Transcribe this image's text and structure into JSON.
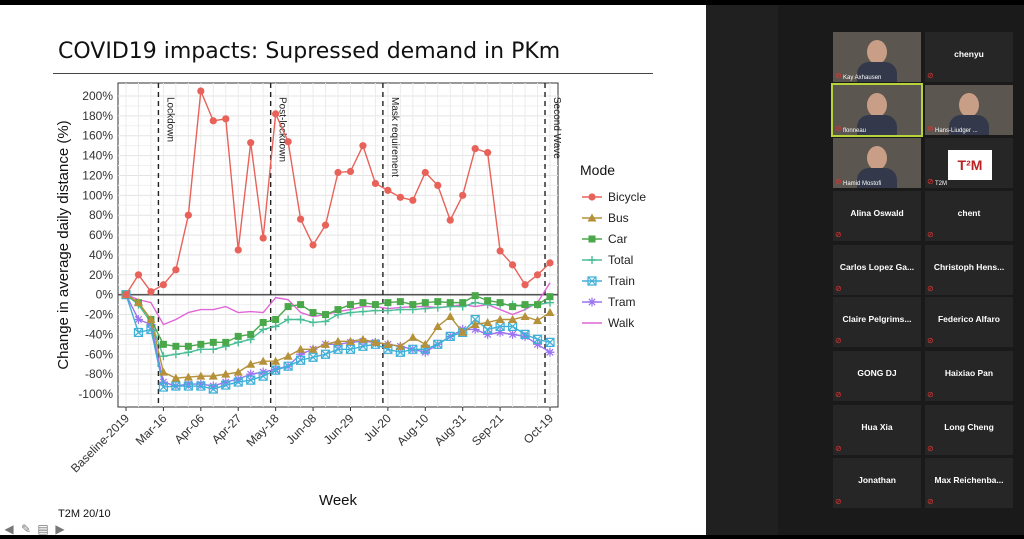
{
  "slide": {
    "title": "COVID19 impacts: Supressed demand in PKm",
    "number": "T2M 20/10"
  },
  "chart_data": {
    "type": "line",
    "xlabel": "Week",
    "ylabel": "Change in average daily distance (%)",
    "ylim": [
      -100,
      200
    ],
    "yticks": [
      "200%",
      "180%",
      "160%",
      "140%",
      "120%",
      "100%",
      "80%",
      "60%",
      "40%",
      "20%",
      "0%",
      "-20%",
      "-40%",
      "-60%",
      "-80%",
      "-100%"
    ],
    "xtick_labels": [
      "Baseline-2019",
      "Mar-16",
      "Apr-06",
      "Apr-27",
      "May-18",
      "Jun-08",
      "Jun-29",
      "Jul-20",
      "Aug-10",
      "Aug-31",
      "Sep-21",
      "Oct-19"
    ],
    "xtick_index": [
      0,
      3,
      6,
      9,
      12,
      15,
      18,
      21,
      24,
      27,
      30,
      34
    ],
    "annotations": [
      {
        "label": "Lockdown",
        "index": 2.6
      },
      {
        "label": "Post-lockdown",
        "index": 11.6
      },
      {
        "label": "Mask requirement",
        "index": 20.6
      },
      {
        "label": "Second Wave",
        "index": 33.6
      }
    ],
    "legend_title": "Mode",
    "series": [
      {
        "name": "Bicycle",
        "color": "#e8625a",
        "marker": "circle",
        "values": [
          0,
          20,
          3,
          10,
          25,
          80,
          205,
          175,
          177,
          45,
          153,
          57,
          182,
          154,
          76,
          50,
          70,
          123,
          124,
          150,
          112,
          105,
          98,
          95,
          123,
          110,
          75,
          100,
          147,
          143,
          44,
          30,
          10,
          20,
          32
        ]
      },
      {
        "name": "Bus",
        "color": "#b5913a",
        "marker": "triangle",
        "values": [
          0,
          -8,
          -25,
          -78,
          -84,
          -83,
          -82,
          -82,
          -80,
          -78,
          -70,
          -67,
          -67,
          -62,
          -55,
          -55,
          -50,
          -47,
          -47,
          -45,
          -48,
          -50,
          -52,
          -43,
          -50,
          -32,
          -22,
          -38,
          -30,
          -28,
          -25,
          -25,
          -22,
          -26,
          -18
        ]
      },
      {
        "name": "Car",
        "color": "#4aa84a",
        "marker": "square",
        "values": [
          0,
          -8,
          -25,
          -50,
          -52,
          -52,
          -50,
          -48,
          -48,
          -42,
          -40,
          -28,
          -25,
          -12,
          -10,
          -18,
          -20,
          -15,
          -10,
          -8,
          -10,
          -8,
          -7,
          -10,
          -8,
          -7,
          -8,
          -8,
          -1,
          -6,
          -8,
          -12,
          -10,
          -10,
          -2
        ]
      },
      {
        "name": "Total",
        "color": "#4bbd96",
        "marker": "plus",
        "values": [
          0,
          -10,
          -28,
          -62,
          -60,
          -58,
          -55,
          -55,
          -52,
          -48,
          -45,
          -35,
          -32,
          -25,
          -25,
          -28,
          -27,
          -20,
          -18,
          -17,
          -16,
          -16,
          -15,
          -15,
          -14,
          -13,
          -12,
          -12,
          -8,
          -10,
          -10,
          -10,
          -12,
          -10,
          -8
        ]
      },
      {
        "name": "Train",
        "color": "#3fb0d8",
        "marker": "boxx",
        "values": [
          0,
          -38,
          -35,
          -93,
          -92,
          -92,
          -92,
          -95,
          -91,
          -88,
          -86,
          -82,
          -76,
          -72,
          -66,
          -63,
          -60,
          -55,
          -55,
          -52,
          -50,
          -55,
          -58,
          -55,
          -55,
          -50,
          -42,
          -38,
          -25,
          -35,
          -32,
          -32,
          -40,
          -45,
          -48
        ]
      },
      {
        "name": "Tram",
        "color": "#9c73f0",
        "marker": "star",
        "values": [
          0,
          -25,
          -30,
          -88,
          -92,
          -90,
          -90,
          -92,
          -88,
          -85,
          -80,
          -78,
          -75,
          -72,
          -60,
          -55,
          -50,
          -50,
          -48,
          -47,
          -48,
          -50,
          -52,
          -55,
          -58,
          -50,
          -42,
          -35,
          -35,
          -40,
          -38,
          -40,
          -42,
          -50,
          -58
        ]
      },
      {
        "name": "Walk",
        "color": "#e066d8",
        "marker": "none",
        "values": [
          0,
          -5,
          -8,
          -30,
          -25,
          -18,
          -15,
          -15,
          -12,
          -18,
          -17,
          -18,
          -3,
          -5,
          -18,
          -22,
          -20,
          -17,
          -15,
          -12,
          -12,
          -14,
          -13,
          -12,
          -12,
          -13,
          -12,
          -10,
          -12,
          -10,
          -15,
          -20,
          -15,
          -8,
          12
        ]
      }
    ]
  },
  "participants": [
    {
      "name": "Kay Axhausen",
      "video": true
    },
    {
      "name": "chenyu",
      "video": false
    },
    {
      "name": "flonneau",
      "video": true,
      "active": true
    },
    {
      "name": "Hans-Liudger ...",
      "video": true
    },
    {
      "name": "Hamid Mostofi",
      "video": true
    },
    {
      "name": "T2M",
      "video": "logo",
      "logo_text": "T²M"
    },
    {
      "name": "Alina Oswald",
      "video": false
    },
    {
      "name": "chent",
      "video": false
    },
    {
      "name": "Carlos Lopez Ga...",
      "video": false
    },
    {
      "name": "Christoph Hens...",
      "video": false
    },
    {
      "name": "Claire Pelgrims...",
      "video": false
    },
    {
      "name": "Federico Alfaro",
      "video": false
    },
    {
      "name": "GONG DJ",
      "video": false
    },
    {
      "name": "Haixiao Pan",
      "video": false
    },
    {
      "name": "Hua Xia",
      "video": false
    },
    {
      "name": "Long Cheng",
      "video": false
    },
    {
      "name": "Jonathan",
      "video": false
    },
    {
      "name": "Max Reichenba...",
      "video": false
    }
  ]
}
